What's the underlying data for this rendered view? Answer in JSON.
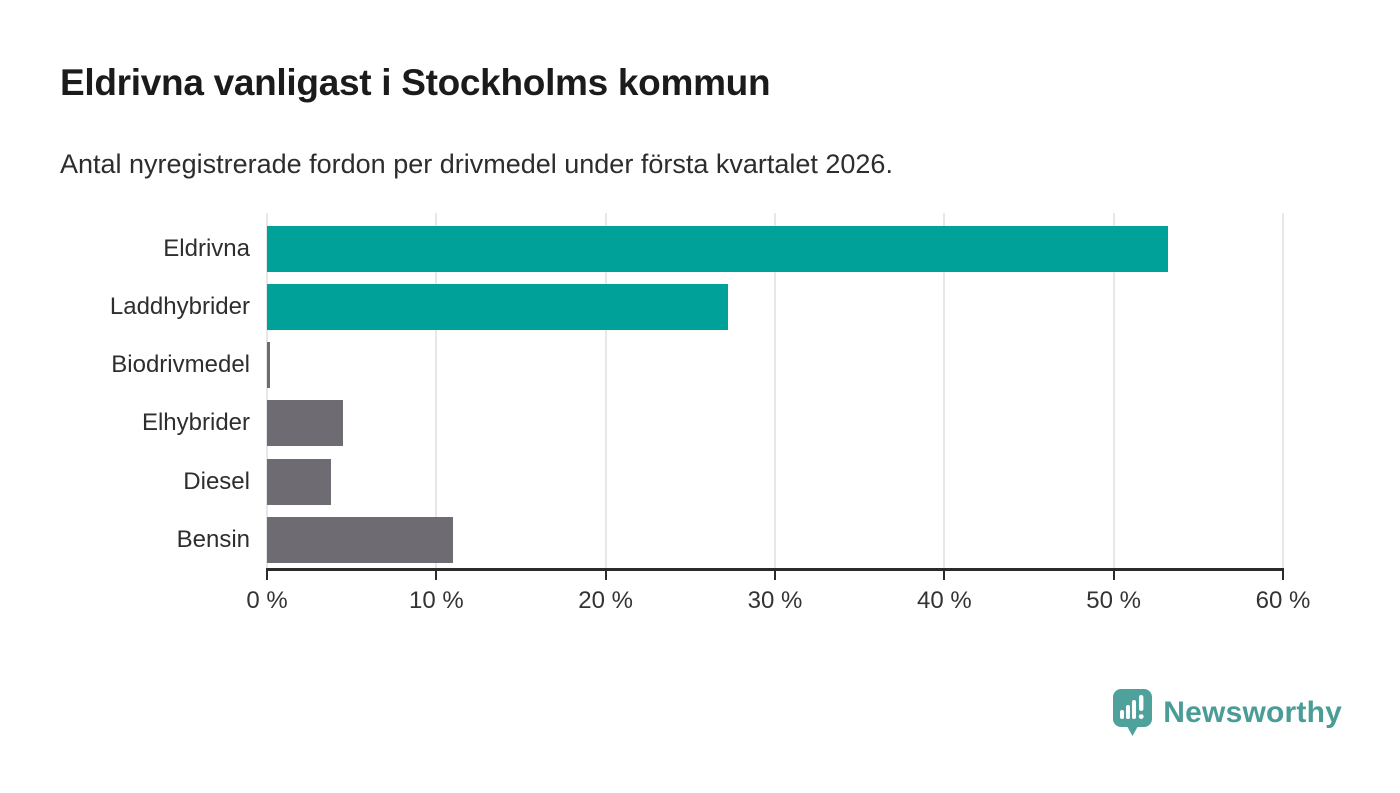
{
  "header": {
    "title": "Eldrivna vanligast i Stockholms kommun",
    "subtitle": "Antal nyregistrerade fordon per drivmedel under första kvartalet 2026."
  },
  "chart_data": {
    "type": "bar",
    "orientation": "horizontal",
    "title": "Eldrivna vanligast i Stockholms kommun",
    "subtitle": "Antal nyregistrerade fordon per drivmedel under första kvartalet 2026.",
    "categories": [
      "Eldrivna",
      "Laddhybrider",
      "Biodrivmedel",
      "Elhybrider",
      "Diesel",
      "Bensin"
    ],
    "values": [
      53.2,
      27.2,
      0.2,
      4.5,
      3.8,
      11.0
    ],
    "unit": "%",
    "bar_colors": [
      "#00a198",
      "#00a198",
      "#6e6b73",
      "#6e6b73",
      "#6e6b73",
      "#6e6b73"
    ],
    "xlabel": "",
    "ylabel": "",
    "xlim": [
      0,
      60
    ],
    "x_tick_values": [
      0,
      10,
      20,
      30,
      40,
      50,
      60
    ],
    "x_tick_labels": [
      "0 %",
      "10 %",
      "20 %",
      "30 %",
      "40 %",
      "50 %",
      "60 %"
    ],
    "grid": "vertical",
    "legend": "none"
  },
  "footer": {
    "brand": "Newsworthy",
    "logo_icon": "bar-chart-speech-bubble-icon"
  },
  "colors": {
    "accent_teal": "#00a198",
    "neutral_gray": "#6e6b73",
    "brand_teal": "#4a9c97",
    "grid": "#e7e7e7",
    "axis": "#2b2b2b",
    "text": "#2e2e2e",
    "background": "#ffffff"
  }
}
